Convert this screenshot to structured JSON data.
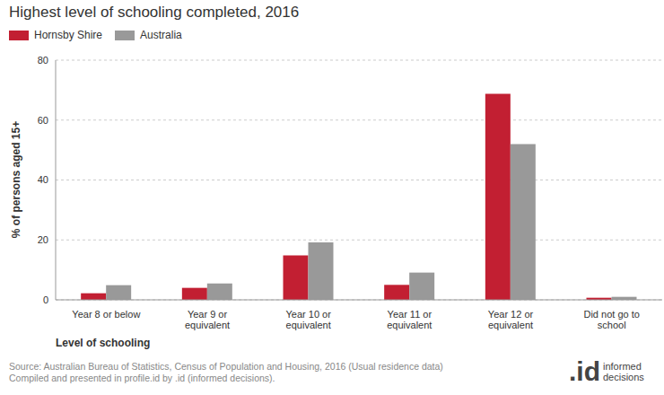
{
  "chart_data": {
    "type": "bar",
    "title": "Highest level of schooling completed, 2016",
    "x_label": "Level of schooling",
    "y_label": "% of persons aged 15+",
    "categories": [
      "Year 8 or below",
      "Year 9 or equivalent",
      "Year 10 or equivalent",
      "Year 11 or equivalent",
      "Year 12 or equivalent",
      "Did not go to school"
    ],
    "series": [
      {
        "name": "Hornsby Shire",
        "color": "#c21f32",
        "values": [
          2.2,
          4.0,
          14.8,
          5.0,
          68.8,
          0.7
        ]
      },
      {
        "name": "Australia",
        "color": "#999999",
        "values": [
          4.9,
          5.5,
          19.2,
          9.1,
          52.0,
          1.0
        ]
      }
    ],
    "ylim": [
      0,
      80
    ],
    "yticks": [
      0,
      20,
      40,
      60,
      80
    ],
    "grid": true,
    "legend": "top-left",
    "notes": [
      "Source: Australian Bureau of Statistics, Census of Population and Housing, 2016 (Usual residence data)",
      "Compiled and presented in profile.id by .id (informed decisions)."
    ],
    "logo": ".id",
    "logo_text": "informed decisions"
  }
}
